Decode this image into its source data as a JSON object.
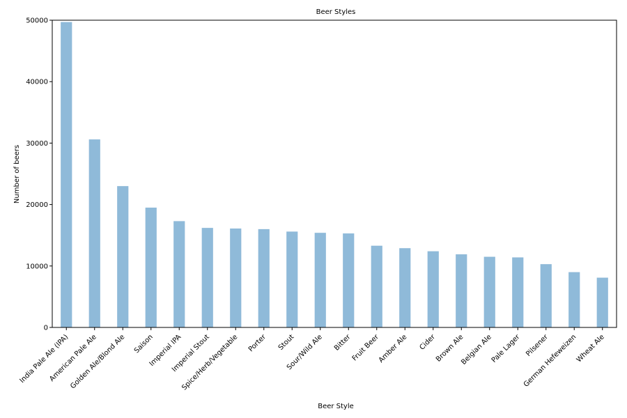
{
  "chart_data": {
    "type": "bar",
    "title": "Beer Styles",
    "xlabel": "Beer Style",
    "ylabel": "Number of beers",
    "ylim": [
      0,
      50000
    ],
    "yticks": [
      0,
      10000,
      20000,
      30000,
      40000,
      50000
    ],
    "grid": false,
    "bar_color": "#8fbad9",
    "categories": [
      "India Pale Ale (IPA)",
      "American Pale Ale",
      "Golden Ale/Blond Ale",
      "Saison",
      "Imperial IPA",
      "Imperial Stout",
      "Spice/Herb/Vegetable",
      "Porter",
      "Stout",
      "Sour/Wild Ale",
      "Bitter",
      "Fruit Beer",
      "Amber Ale",
      "Cider",
      "Brown Ale",
      "Belgian Ale",
      "Pale Lager",
      "Pilsener",
      "German Hefeweizen",
      "Wheat Ale"
    ],
    "values": [
      49700,
      30600,
      23000,
      19500,
      17300,
      16200,
      16100,
      16000,
      15600,
      15400,
      15300,
      13300,
      12900,
      12400,
      11900,
      11500,
      11400,
      10300,
      9000,
      8100
    ]
  }
}
